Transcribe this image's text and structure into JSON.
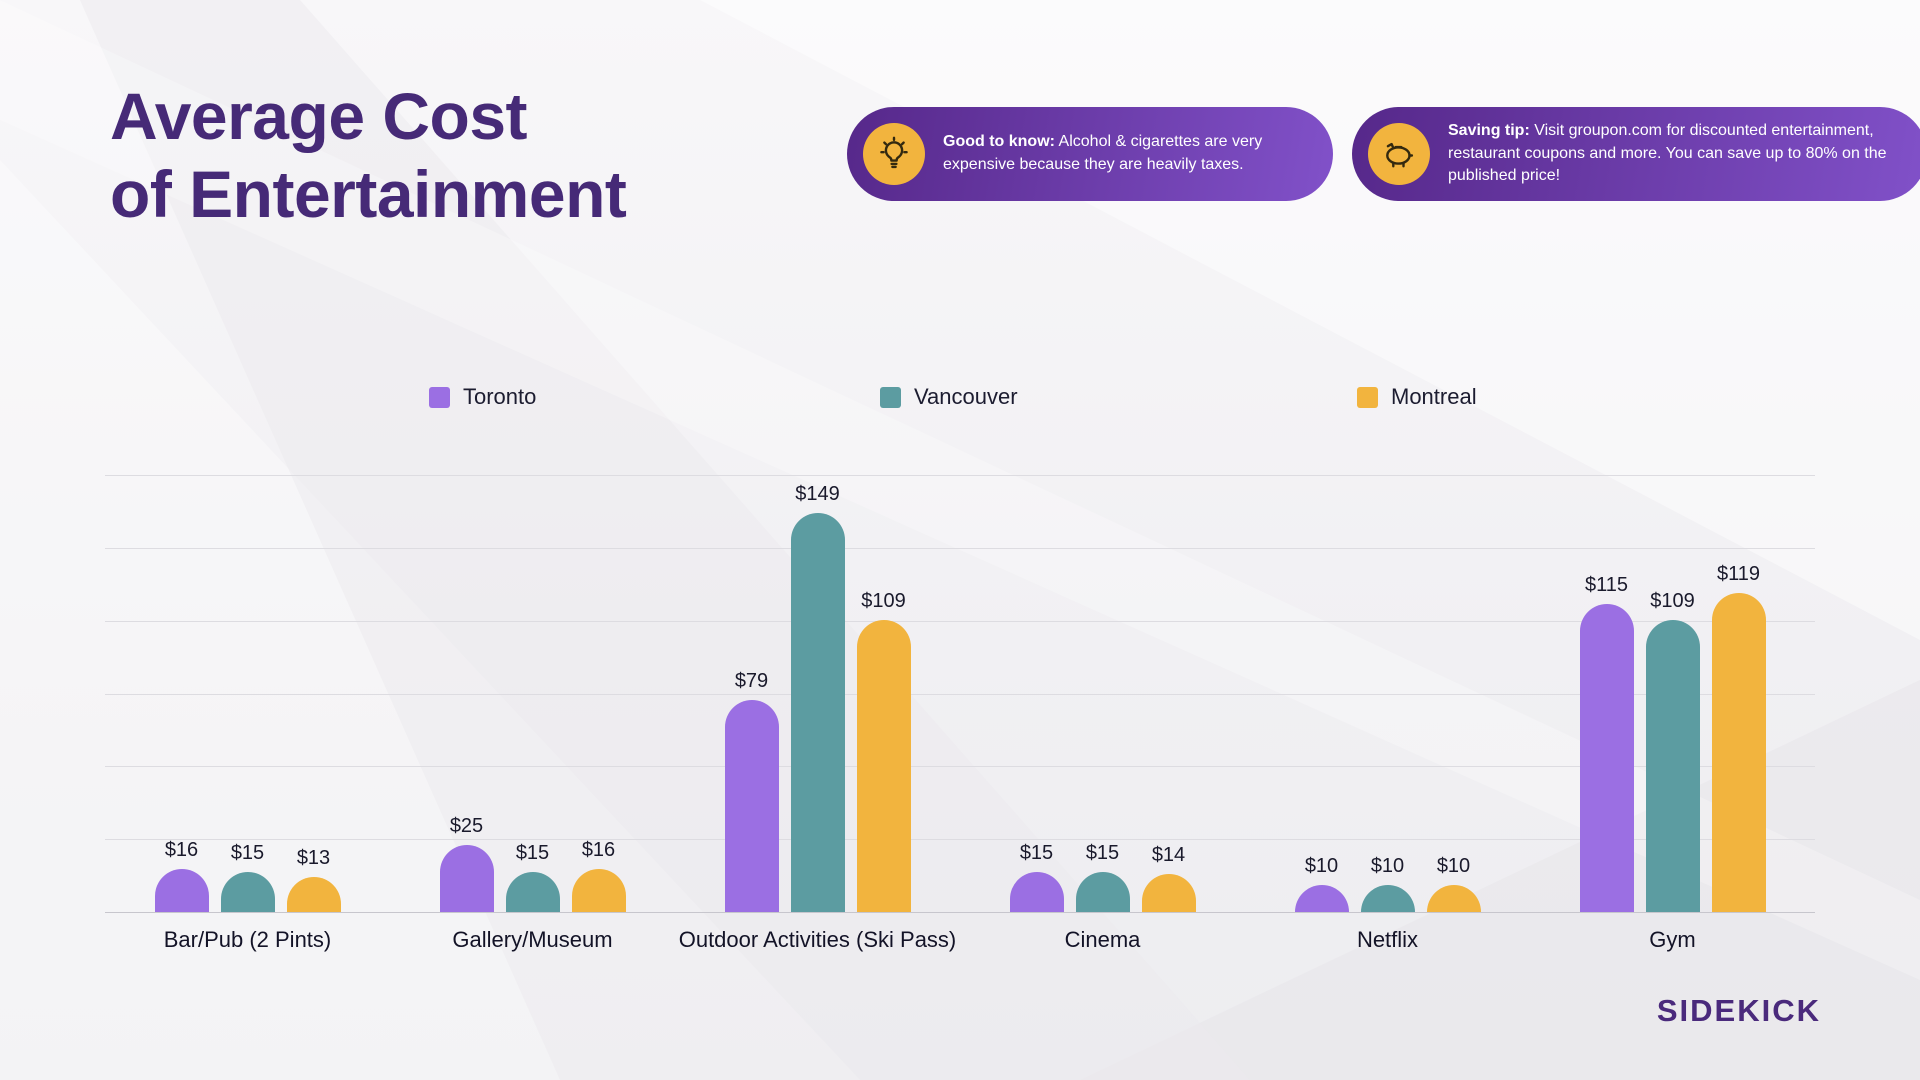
{
  "title": {
    "line1": "Average Cost",
    "line2": "of Entertainment"
  },
  "callouts": [
    {
      "icon": "lightbulb-icon",
      "lead": "Good to know:",
      "text": "Alcohol & cigarettes are very expensive because they are heavily taxes."
    },
    {
      "icon": "piggy-bank-icon",
      "lead": "Saving tip:",
      "text": "Visit groupon.com for discounted entertainment, restaurant coupons and more. You can save up to 80% on the published price!"
    }
  ],
  "legend": [
    {
      "label": "Toronto",
      "color": "#9B6FE3"
    },
    {
      "label": "Vancouver",
      "color": "#5C9CA1"
    },
    {
      "label": "Montreal",
      "color": "#F2B43E"
    }
  ],
  "chart_data": {
    "type": "bar",
    "title": "Average Cost of Entertainment",
    "categories": [
      "Bar/Pub (2 Pints)",
      "Gallery/Museum",
      "Outdoor Activities (Ski Pass)",
      "Cinema",
      "Netflix",
      "Gym"
    ],
    "series": [
      {
        "name": "Toronto",
        "color": "#9B6FE3",
        "values": [
          16,
          25,
          79,
          15,
          10,
          115
        ]
      },
      {
        "name": "Vancouver",
        "color": "#5C9CA1",
        "values": [
          15,
          15,
          149,
          15,
          10,
          109
        ]
      },
      {
        "name": "Montreal",
        "color": "#F2B43E",
        "values": [
          13,
          16,
          109,
          14,
          10,
          119
        ]
      }
    ],
    "value_prefix": "$",
    "ylim": [
      0,
      163
    ],
    "grid": true,
    "legend_position": "top"
  },
  "brand": {
    "logo_text": "SIDEKICK"
  },
  "colors": {
    "title_purple": "#462a77",
    "pill_gradient_start": "#56288a",
    "pill_gradient_end": "#8151c9",
    "icon_circle_yellow": "#F2B43E"
  }
}
